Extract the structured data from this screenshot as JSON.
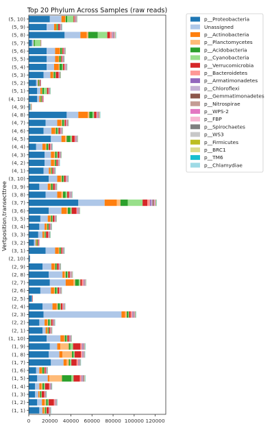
{
  "chart_data": {
    "type": "bar",
    "orientation": "horizontal",
    "stacked": true,
    "title": "Top 20 Phylum Across Samples (raw reads)",
    "xlabel": "",
    "ylabel": "Vertposition,transecttree",
    "xlim": [
      0,
      130000
    ],
    "xticks": [
      0,
      20000,
      40000,
      60000,
      80000,
      100000,
      120000
    ],
    "grid": false,
    "legend_position": "outside-right-top",
    "categories": [
      "(5, 10)",
      "(5, 9)",
      "(5, 8)",
      "(5, 7)",
      "(5, 6)",
      "(5, 5)",
      "(5, 4)",
      "(5, 3)",
      "(5, 2)",
      "(5, 1)",
      "(4, 10)",
      "(4, 9)",
      "(4, 8)",
      "(4, 7)",
      "(4, 6)",
      "(4, 5)",
      "(4, 4)",
      "(4, 3)",
      "(4, 2)",
      "(4, 1)",
      "(3, 10)",
      "(3, 9)",
      "(3, 8)",
      "(3, 7)",
      "(3, 6)",
      "(3, 5)",
      "(3, 4)",
      "(3, 3)",
      "(3, 2)",
      "(3, 1)",
      "(2, 10)",
      "(2, 9)",
      "(2, 8)",
      "(2, 7)",
      "(2, 6)",
      "(2, 5)",
      "(2, 4)",
      "(2, 3)",
      "(2, 2)",
      "(2, 1)",
      "(1, 10)",
      "(1, 9)",
      "(1, 8)",
      "(1, 7)",
      "(1, 6)",
      "(1, 5)",
      "(1, 4)",
      "(1, 3)",
      "(1, 2)",
      "(1, 1)"
    ],
    "series": [
      {
        "name": "p__Proteobacteria",
        "color": "#1f77b4",
        "values": [
          20000,
          17000,
          34000,
          3000,
          17000,
          17000,
          17000,
          14000,
          7000,
          8000,
          8000,
          1000,
          36000,
          16000,
          14000,
          21000,
          7000,
          15000,
          15000,
          14000,
          19000,
          10000,
          16000,
          47000,
          19000,
          11000,
          10000,
          9000,
          5000,
          16000,
          1000,
          13000,
          19000,
          20000,
          11000,
          3000,
          13000,
          14000,
          10000,
          13000,
          17000,
          20000,
          19000,
          21000,
          7000,
          8000,
          6000,
          6000,
          8000,
          10000
        ]
      },
      {
        "name": "Unassigned",
        "color": "#aec7e8",
        "values": [
          11000,
          7000,
          15000,
          1500,
          8000,
          8000,
          7000,
          6500,
          1500,
          3000,
          2000,
          800,
          11000,
          11000,
          7500,
          10000,
          6000,
          6000,
          6000,
          5000,
          8000,
          8000,
          11000,
          25000,
          12000,
          7000,
          5000,
          4000,
          1500,
          9000,
          300,
          8500,
          13000,
          15000,
          10000,
          300,
          9500,
          74000,
          5000,
          3000,
          13000,
          7000,
          10000,
          12000,
          3000,
          10000,
          4000,
          3000,
          4500,
          3000
        ]
      },
      {
        "name": "p__Actinobacteria",
        "color": "#ff7f0e",
        "values": [
          3500,
          2000,
          6000,
          0,
          4500,
          3500,
          4500,
          2500,
          500,
          1500,
          1000,
          0,
          9000,
          4000,
          3500,
          3500,
          3000,
          3000,
          3000,
          1500,
          3500,
          2500,
          4000,
          11500,
          5000,
          2500,
          2000,
          1500,
          700,
          3500,
          0,
          3000,
          2000,
          7500,
          3000,
          0,
          4000,
          3500,
          2500,
          1500,
          3500,
          3000,
          3000,
          3000,
          2500,
          1500,
          2000,
          1000,
          2500,
          1500
        ]
      },
      {
        "name": "p__Planctomycetes",
        "color": "#ffbb78",
        "values": [
          500,
          400,
          1500,
          300,
          400,
          400,
          700,
          600,
          100,
          300,
          300,
          0,
          1500,
          700,
          700,
          1500,
          700,
          1000,
          700,
          600,
          800,
          600,
          1500,
          3500,
          1000,
          600,
          500,
          600,
          300,
          600,
          0,
          600,
          1000,
          1500,
          800,
          0,
          1000,
          1500,
          800,
          500,
          700,
          8000,
          9000,
          2000,
          300,
          12000,
          1000,
          700,
          1500,
          800
        ]
      },
      {
        "name": "p__Acidobacteria",
        "color": "#2ca02c",
        "values": [
          1500,
          1000,
          9000,
          1000,
          1500,
          1500,
          2500,
          1500,
          800,
          1500,
          700,
          300,
          3000,
          1500,
          1500,
          3500,
          1500,
          1500,
          1000,
          800,
          1500,
          1500,
          2500,
          7000,
          2500,
          1200,
          1000,
          900,
          700,
          1200,
          0,
          1200,
          1500,
          3500,
          1500,
          0,
          2000,
          1500,
          1500,
          800,
          1500,
          1500,
          1500,
          1200,
          1500,
          9000,
          1500,
          1000,
          1500,
          1000
        ]
      },
      {
        "name": "p__Cyanobacteria",
        "color": "#98df8a",
        "values": [
          6000,
          500,
          9000,
          5500,
          500,
          400,
          800,
          600,
          300,
          3000,
          500,
          300,
          1500,
          800,
          1000,
          1500,
          600,
          900,
          500,
          400,
          700,
          500,
          1500,
          14000,
          1200,
          500,
          400,
          400,
          300,
          400,
          0,
          500,
          900,
          1500,
          1000,
          0,
          900,
          700,
          1500,
          400,
          900,
          2500,
          1000,
          1200,
          600,
          2000,
          900,
          600,
          900,
          600
        ]
      },
      {
        "name": "p__Verrucomicrobia",
        "color": "#d62728",
        "values": [
          800,
          1500,
          2500,
          300,
          1000,
          900,
          1200,
          2500,
          700,
          1200,
          600,
          200,
          2000,
          1200,
          1500,
          2500,
          1500,
          1500,
          1200,
          1000,
          1500,
          1500,
          1500,
          4500,
          4500,
          1500,
          900,
          2000,
          700,
          1000,
          0,
          1500,
          1500,
          1500,
          1500,
          300,
          1500,
          1500,
          1200,
          1000,
          1500,
          7000,
          6000,
          5000,
          1000,
          6000,
          4000,
          2500,
          5000,
          2000
        ]
      },
      {
        "name": "p__Bacteroidetes",
        "color": "#ff9896",
        "values": [
          500,
          500,
          2000,
          200,
          400,
          400,
          600,
          500,
          200,
          400,
          300,
          100,
          800,
          600,
          600,
          700,
          500,
          500,
          400,
          400,
          600,
          500,
          800,
          2500,
          800,
          500,
          400,
          500,
          300,
          500,
          0,
          500,
          600,
          1500,
          700,
          100,
          700,
          1500,
          600,
          400,
          600,
          1500,
          1300,
          1500,
          400,
          1500,
          800,
          400,
          1000,
          500
        ]
      },
      {
        "name": "p__Armatimonadetes",
        "color": "#9467bd",
        "values": [
          300,
          200,
          500,
          0,
          200,
          200,
          300,
          200,
          100,
          200,
          100,
          0,
          400,
          300,
          300,
          400,
          200,
          200,
          200,
          200,
          300,
          200,
          400,
          1000,
          400,
          200,
          200,
          200,
          100,
          200,
          0,
          200,
          300,
          400,
          300,
          0,
          300,
          500,
          300,
          200,
          300,
          500,
          400,
          400,
          200,
          500,
          300,
          200,
          300,
          200
        ]
      },
      {
        "name": "p__Chloroflexi",
        "color": "#c5b0d5",
        "values": [
          400,
          300,
          800,
          200,
          300,
          300,
          400,
          300,
          100,
          300,
          200,
          0,
          600,
          400,
          400,
          500,
          300,
          300,
          300,
          300,
          400,
          300,
          600,
          1500,
          600,
          300,
          300,
          300,
          200,
          300,
          0,
          300,
          400,
          500,
          400,
          0,
          400,
          700,
          400,
          300,
          400,
          700,
          600,
          500,
          300,
          800,
          400,
          300,
          400,
          300
        ]
      },
      {
        "name": "p__Gemmatimonadetes",
        "color": "#8c564b",
        "values": [
          300,
          200,
          500,
          0,
          200,
          200,
          200,
          200,
          100,
          200,
          100,
          0,
          400,
          200,
          200,
          300,
          200,
          200,
          200,
          200,
          200,
          200,
          300,
          800,
          300,
          200,
          200,
          200,
          100,
          200,
          0,
          200,
          300,
          300,
          200,
          0,
          200,
          400,
          200,
          200,
          200,
          400,
          300,
          300,
          200,
          400,
          200,
          200,
          200,
          200
        ]
      },
      {
        "name": "p__Nitrospirae",
        "color": "#c49c94",
        "values": [
          200,
          200,
          400,
          0,
          200,
          200,
          200,
          200,
          100,
          200,
          100,
          0,
          300,
          200,
          200,
          300,
          200,
          200,
          200,
          200,
          200,
          200,
          300,
          700,
          300,
          200,
          200,
          200,
          100,
          200,
          0,
          200,
          300,
          300,
          200,
          0,
          200,
          400,
          200,
          200,
          200,
          300,
          300,
          300,
          200,
          300,
          200,
          200,
          200,
          200
        ]
      },
      {
        "name": "p__WPS-2",
        "color": "#e377c2",
        "values": [
          200,
          100,
          300,
          0,
          100,
          100,
          200,
          100,
          0,
          100,
          100,
          0,
          200,
          200,
          200,
          200,
          100,
          100,
          100,
          100,
          200,
          100,
          200,
          500,
          200,
          100,
          100,
          100,
          0,
          100,
          0,
          100,
          200,
          200,
          100,
          0,
          200,
          300,
          100,
          100,
          200,
          200,
          200,
          200,
          100,
          200,
          100,
          100,
          200,
          100
        ]
      },
      {
        "name": "p__FBP",
        "color": "#f7b6d2",
        "values": [
          200,
          100,
          300,
          0,
          100,
          100,
          200,
          100,
          0,
          100,
          100,
          0,
          200,
          200,
          200,
          200,
          100,
          100,
          100,
          100,
          200,
          100,
          200,
          500,
          200,
          100,
          100,
          100,
          0,
          100,
          0,
          100,
          200,
          200,
          100,
          0,
          200,
          300,
          100,
          100,
          200,
          200,
          200,
          200,
          100,
          200,
          100,
          100,
          200,
          100
        ]
      },
      {
        "name": "p__Spirochaetes",
        "color": "#7f7f7f",
        "values": [
          100,
          100,
          200,
          0,
          100,
          100,
          100,
          100,
          0,
          100,
          0,
          0,
          200,
          100,
          100,
          100,
          100,
          100,
          100,
          100,
          100,
          100,
          100,
          300,
          100,
          100,
          100,
          100,
          0,
          100,
          0,
          100,
          100,
          100,
          100,
          0,
          100,
          200,
          100,
          100,
          100,
          200,
          100,
          100,
          100,
          200,
          100,
          100,
          100,
          100
        ]
      },
      {
        "name": "p__WS3",
        "color": "#c7c7c7",
        "values": [
          100,
          100,
          200,
          0,
          100,
          100,
          100,
          100,
          0,
          100,
          0,
          0,
          200,
          100,
          100,
          100,
          100,
          100,
          100,
          100,
          100,
          100,
          100,
          300,
          100,
          100,
          100,
          100,
          0,
          100,
          0,
          100,
          100,
          100,
          100,
          0,
          100,
          200,
          100,
          100,
          100,
          200,
          100,
          100,
          100,
          500,
          100,
          100,
          100,
          100
        ]
      },
      {
        "name": "p__Firmicutes",
        "color": "#bcbd22",
        "values": [
          100,
          100,
          200,
          0,
          100,
          100,
          100,
          100,
          0,
          100,
          0,
          0,
          200,
          100,
          100,
          100,
          100,
          100,
          100,
          100,
          100,
          100,
          100,
          300,
          100,
          100,
          100,
          100,
          0,
          100,
          0,
          100,
          100,
          100,
          100,
          0,
          100,
          200,
          100,
          100,
          100,
          200,
          100,
          100,
          100,
          200,
          100,
          100,
          100,
          100
        ]
      },
      {
        "name": "p__BRC1",
        "color": "#dbdb8d",
        "values": [
          100,
          100,
          200,
          0,
          100,
          100,
          100,
          100,
          0,
          100,
          0,
          0,
          100,
          100,
          100,
          100,
          100,
          100,
          100,
          100,
          100,
          100,
          100,
          200,
          100,
          100,
          100,
          100,
          0,
          100,
          0,
          100,
          100,
          100,
          100,
          0,
          100,
          200,
          100,
          100,
          100,
          100,
          100,
          100,
          100,
          200,
          100,
          100,
          100,
          100
        ]
      },
      {
        "name": "p__TM6",
        "color": "#17becf",
        "values": [
          50,
          50,
          100,
          0,
          50,
          50,
          50,
          50,
          0,
          50,
          0,
          0,
          100,
          50,
          50,
          50,
          50,
          50,
          50,
          50,
          50,
          50,
          50,
          200,
          50,
          50,
          50,
          50,
          0,
          50,
          0,
          50,
          50,
          50,
          50,
          0,
          50,
          100,
          50,
          50,
          50,
          100,
          50,
          50,
          50,
          100,
          50,
          50,
          50,
          50
        ]
      },
      {
        "name": "p__Chlamydiae",
        "color": "#9edae5",
        "values": [
          50,
          50,
          100,
          0,
          50,
          50,
          50,
          50,
          0,
          50,
          0,
          0,
          100,
          50,
          50,
          50,
          50,
          50,
          50,
          50,
          50,
          50,
          50,
          200,
          50,
          50,
          50,
          50,
          0,
          50,
          0,
          50,
          50,
          50,
          50,
          0,
          50,
          100,
          50,
          50,
          50,
          100,
          50,
          50,
          50,
          100,
          50,
          50,
          50,
          50
        ]
      }
    ]
  }
}
